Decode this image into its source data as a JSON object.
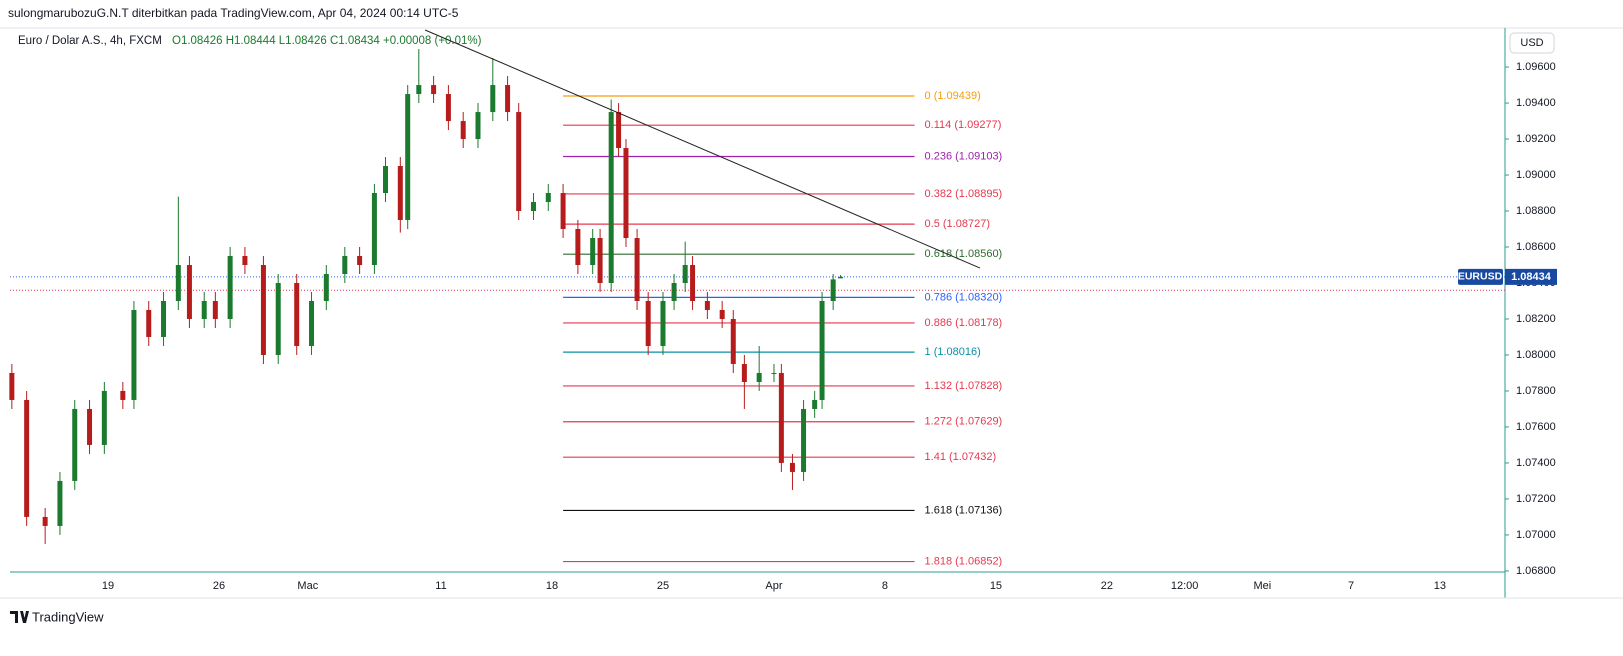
{
  "attribution": "sulongmarubozuG.N.T diterbitkan pada TradingView.com, Apr 04, 2024 00:14 UTC-5",
  "footer": "TradingView",
  "chart_data": {
    "type": "candlestick",
    "title": "Euro / Dolar A.S., 4h, FXCM",
    "ohlc_label": "O1.08426 H1.08444 L1.08426 C1.08434 +0.00008 (+0.01%)",
    "currency": "USD",
    "symbol": "EURUSD",
    "last_price": 1.08434,
    "prev_close_line": 1.0836,
    "up_color": "#1b7a2e",
    "down_color": "#b71c1c",
    "grid": false,
    "xlim": [
      -26.5,
      377.6
    ],
    "xticks": [
      {
        "value": 0,
        "label": "19"
      },
      {
        "value": 30,
        "label": "26"
      },
      {
        "value": 54,
        "label": "Mac"
      },
      {
        "value": 90,
        "label": "11"
      },
      {
        "value": 120,
        "label": "18"
      },
      {
        "value": 150,
        "label": "25"
      },
      {
        "value": 180,
        "label": "Apr"
      },
      {
        "value": 210,
        "label": "8"
      },
      {
        "value": 240,
        "label": "15"
      },
      {
        "value": 270,
        "label": "22"
      },
      {
        "value": 291,
        "label": "12:00"
      },
      {
        "value": 312,
        "label": "Mei"
      },
      {
        "value": 336,
        "label": "7"
      },
      {
        "value": 360,
        "label": "13"
      }
    ],
    "ylim": [
      1.06794,
      1.09817
    ],
    "yticks": [
      {
        "value": 1.096,
        "label": "1.09600"
      },
      {
        "value": 1.094,
        "label": "1.09400"
      },
      {
        "value": 1.092,
        "label": "1.09200"
      },
      {
        "value": 1.09,
        "label": "1.09000"
      },
      {
        "value": 1.088,
        "label": "1.08800"
      },
      {
        "value": 1.086,
        "label": "1.08600"
      },
      {
        "value": 1.084,
        "label": "1.08400"
      },
      {
        "value": 1.082,
        "label": "1.08200"
      },
      {
        "value": 1.08,
        "label": "1.08000"
      },
      {
        "value": 1.078,
        "label": "1.07800"
      },
      {
        "value": 1.076,
        "label": "1.07600"
      },
      {
        "value": 1.074,
        "label": "1.07400"
      },
      {
        "value": 1.072,
        "label": "1.07200"
      },
      {
        "value": 1.07,
        "label": "1.07000"
      },
      {
        "value": 1.068,
        "label": "1.06800"
      }
    ],
    "x": [
      -26,
      -22,
      -17,
      -13,
      -9,
      -5,
      -1,
      4,
      7,
      11,
      15,
      19,
      22,
      26,
      29,
      33,
      37,
      42,
      46,
      51,
      55,
      59,
      64,
      68,
      72,
      75,
      79,
      81,
      84,
      88,
      92,
      96,
      100,
      104,
      108,
      111,
      115,
      119,
      123,
      127,
      131,
      133,
      136,
      138,
      140,
      143,
      146,
      150,
      153,
      156,
      158,
      162,
      166,
      169,
      172,
      176,
      180,
      182,
      185,
      188,
      191,
      193,
      196,
      198
    ],
    "open": [
      1.079,
      1.0775,
      1.071,
      1.0705,
      1.073,
      1.077,
      1.075,
      1.078,
      1.0775,
      1.0825,
      1.081,
      1.083,
      1.085,
      1.082,
      1.083,
      1.082,
      1.0855,
      1.085,
      1.08,
      1.084,
      1.0805,
      1.083,
      1.0845,
      1.0855,
      1.085,
      1.089,
      1.0905,
      1.0875,
      1.0945,
      1.095,
      1.0945,
      1.093,
      1.092,
      1.0935,
      1.095,
      1.0935,
      1.088,
      1.0885,
      1.089,
      1.087,
      1.085,
      1.0865,
      1.084,
      1.0935,
      1.0915,
      1.0865,
      1.083,
      1.0805,
      1.083,
      1.084,
      1.085,
      1.083,
      1.0825,
      1.082,
      1.0795,
      1.0785,
      1.079,
      1.079,
      1.074,
      1.0735,
      1.077,
      1.0775,
      1.083,
      1.08426
    ],
    "high": [
      1.0795,
      1.078,
      1.0715,
      1.0735,
      1.0775,
      1.0775,
      1.0785,
      1.0785,
      1.083,
      1.083,
      1.0835,
      1.0888,
      1.0855,
      1.0835,
      1.0835,
      1.086,
      1.086,
      1.0855,
      1.0845,
      1.0845,
      1.0835,
      1.085,
      1.086,
      1.086,
      1.0895,
      1.091,
      1.091,
      1.095,
      1.097,
      1.0955,
      1.095,
      1.0935,
      1.094,
      1.0965,
      1.0955,
      1.094,
      1.089,
      1.0895,
      1.0895,
      1.0875,
      1.087,
      1.087,
      1.0942,
      1.094,
      1.092,
      1.087,
      1.0835,
      1.0835,
      1.0845,
      1.0863,
      1.0855,
      1.0835,
      1.083,
      1.0825,
      1.08,
      1.0805,
      1.0795,
      1.0795,
      1.0745,
      1.0775,
      1.078,
      1.0835,
      1.0845,
      1.08444
    ],
    "low": [
      1.077,
      1.0705,
      1.0695,
      1.07,
      1.0725,
      1.0745,
      1.0745,
      1.077,
      1.077,
      1.0805,
      1.0805,
      1.0825,
      1.0815,
      1.0815,
      1.0815,
      1.0815,
      1.0845,
      1.0795,
      1.0795,
      1.08,
      1.08,
      1.0825,
      1.084,
      1.0845,
      1.0845,
      1.0885,
      1.0868,
      1.087,
      1.094,
      1.094,
      1.0925,
      1.0915,
      1.0915,
      1.093,
      1.093,
      1.0875,
      1.0875,
      1.088,
      1.0865,
      1.0845,
      1.0845,
      1.0835,
      1.0835,
      1.091,
      1.086,
      1.0825,
      1.08,
      1.08,
      1.0825,
      1.0835,
      1.0825,
      1.082,
      1.0815,
      1.079,
      1.077,
      1.078,
      1.0785,
      1.0735,
      1.0725,
      1.073,
      1.0765,
      1.077,
      1.0825,
      1.08426
    ],
    "close": [
      1.0775,
      1.071,
      1.0705,
      1.073,
      1.077,
      1.075,
      1.078,
      1.0775,
      1.0825,
      1.081,
      1.083,
      1.085,
      1.082,
      1.083,
      1.082,
      1.0855,
      1.085,
      1.08,
      1.084,
      1.0805,
      1.083,
      1.0845,
      1.0855,
      1.085,
      1.089,
      1.0905,
      1.0875,
      1.0945,
      1.095,
      1.0945,
      1.093,
      1.092,
      1.0935,
      1.095,
      1.0935,
      1.088,
      1.0885,
      1.089,
      1.087,
      1.085,
      1.0865,
      1.084,
      1.0935,
      1.0915,
      1.0865,
      1.083,
      1.0805,
      1.083,
      1.084,
      1.085,
      1.083,
      1.0825,
      1.082,
      1.0795,
      1.0785,
      1.079,
      1.079,
      1.074,
      1.0735,
      1.077,
      1.0775,
      1.083,
      1.0842,
      1.08434
    ],
    "trendline": {
      "x": [
        85.7,
        235.7
      ],
      "y": [
        1.09806,
        1.08483
      ],
      "color": "#222222"
    },
    "fib_x": [
      123,
      218
    ],
    "fib_levels": [
      {
        "label": "0 (1.09439)",
        "value": 1.09439,
        "color": "#f59e0b"
      },
      {
        "label": "0.114 (1.09277)",
        "value": 1.09277,
        "color": "#e53950"
      },
      {
        "label": "0.236 (1.09103)",
        "value": 1.09103,
        "color": "#a020b0"
      },
      {
        "label": "0.382 (1.08895)",
        "value": 1.08895,
        "color": "#e53950"
      },
      {
        "label": "0.5 (1.08727)",
        "value": 1.08727,
        "color": "#e53950"
      },
      {
        "label": "0.618 (1.08560)",
        "value": 1.0856,
        "color": "#2e6b30"
      },
      {
        "label": "0.786 (1.08320)",
        "value": 1.0832,
        "color": "#2962ff"
      },
      {
        "label": "0.886 (1.08178)",
        "value": 1.08178,
        "color": "#e53950"
      },
      {
        "label": "1 (1.08016)",
        "value": 1.08016,
        "color": "#0891a8"
      },
      {
        "label": "1.132 (1.07828)",
        "value": 1.07828,
        "color": "#e53950"
      },
      {
        "label": "1.272 (1.07629)",
        "value": 1.07629,
        "color": "#e53950"
      },
      {
        "label": "1.41 (1.07432)",
        "value": 1.07432,
        "color": "#e53950"
      },
      {
        "label": "1.618 (1.07136)",
        "value": 1.07136,
        "color": "#111111"
      },
      {
        "label": "1.818 (1.06852)",
        "value": 1.06852,
        "color": "#e53950"
      }
    ]
  }
}
